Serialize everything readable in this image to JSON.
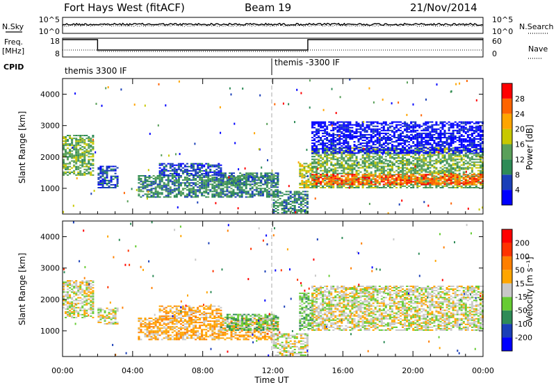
{
  "header": {
    "station": "Fort Hays West (fitACF)",
    "beam": "Beam 19",
    "date": "21/Nov/2014"
  },
  "strip_labels": {
    "nsky": "N.Sky",
    "nsearch": "N.Search",
    "freq_line1": "Freq.",
    "freq_line2": "[MHz]",
    "nave": "Nave",
    "cpid": "CPID",
    "nsky_ticks": [
      "10^5",
      "10^0"
    ],
    "nsearch_ticks": [
      "10^5",
      "10^0"
    ],
    "freq_ticks": [
      "18",
      "8"
    ],
    "nave_ticks": [
      "60",
      "0"
    ]
  },
  "cpid": {
    "segments": [
      {
        "label": "themis 3300 IF",
        "start_hour": 0
      },
      {
        "label": "themis -3300 IF",
        "start_hour": 12
      }
    ]
  },
  "chart_data": [
    {
      "type": "heatmap",
      "name": "Power",
      "ylabel": "Slant Range [km]",
      "xlim": [
        0,
        24
      ],
      "ylim": [
        180,
        4500
      ],
      "yticks": [
        1000,
        2000,
        3000,
        4000
      ],
      "colorbar": {
        "label": "Power [dB]",
        "ticks": [
          "4",
          "8",
          "12",
          "16",
          "20",
          "24",
          "28"
        ],
        "colors": [
          "#0000ff",
          "#1a3fb8",
          "#2e8b57",
          "#5aa05a",
          "#c8c800",
          "#ffa500",
          "#ff6400",
          "#ff0000"
        ]
      },
      "echo_regions": [
        {
          "t0": 0.0,
          "t1": 1.8,
          "r0": 1400,
          "r1": 2700,
          "level": 3
        },
        {
          "t0": 2.0,
          "t1": 3.2,
          "r0": 1000,
          "r1": 1700,
          "level": 1
        },
        {
          "t0": 4.3,
          "t1": 12.3,
          "r0": 700,
          "r1": 1400,
          "level": 2
        },
        {
          "t0": 5.5,
          "t1": 9.0,
          "r0": 1400,
          "r1": 1800,
          "level": 1
        },
        {
          "t0": 9.0,
          "t1": 12.3,
          "r0": 1100,
          "r1": 1500,
          "level": 2
        },
        {
          "t0": 12.0,
          "t1": 14.0,
          "r0": 200,
          "r1": 900,
          "level": 2
        },
        {
          "t0": 13.5,
          "t1": 14.3,
          "r0": 1000,
          "r1": 1800,
          "level": 4
        },
        {
          "t0": 14.2,
          "t1": 24.0,
          "r0": 1000,
          "r1": 2300,
          "level": 3
        },
        {
          "t0": 14.2,
          "t1": 24.0,
          "r0": 1100,
          "r1": 1450,
          "level": 6
        },
        {
          "t0": 14.2,
          "t1": 24.0,
          "r0": 2100,
          "r1": 3100,
          "level": 0
        }
      ]
    },
    {
      "type": "heatmap",
      "name": "Velocity",
      "ylabel": "Slant Range [km]",
      "xlabel": "Time UT",
      "xlim": [
        0,
        24
      ],
      "ylim": [
        180,
        4500
      ],
      "yticks": [
        1000,
        2000,
        3000,
        4000
      ],
      "xticks": [
        "00:00",
        "04:00",
        "08:00",
        "12:00",
        "16:00",
        "20:00",
        "00:00"
      ],
      "colorbar": {
        "label": "Velocity [m s⁻¹]",
        "ticks": [
          "200",
          "100",
          "50",
          "15",
          "-15",
          "-50",
          "-100",
          "-200"
        ],
        "colors": [
          "#0000ff",
          "#1a3fb8",
          "#2e8b57",
          "#66cc33",
          "#c8c8c8",
          "#ffa500",
          "#ff7f00",
          "#ff3300",
          "#ff0000"
        ]
      },
      "echo_regions": [
        {
          "t0": 0.0,
          "t1": 1.8,
          "r0": 1400,
          "r1": 2600,
          "level": 4
        },
        {
          "t0": 2.0,
          "t1": 3.2,
          "r0": 1200,
          "r1": 1700,
          "level": 4
        },
        {
          "t0": 4.3,
          "t1": 12.3,
          "r0": 700,
          "r1": 1400,
          "level": 5
        },
        {
          "t0": 5.5,
          "t1": 9.0,
          "r0": 1400,
          "r1": 1800,
          "level": 5
        },
        {
          "t0": 9.0,
          "t1": 12.3,
          "r0": 1000,
          "r1": 1500,
          "level": 3
        },
        {
          "t0": 12.0,
          "t1": 14.0,
          "r0": 200,
          "r1": 900,
          "level": 4
        },
        {
          "t0": 13.5,
          "t1": 14.3,
          "r0": 1000,
          "r1": 2200,
          "level": 3
        },
        {
          "t0": 14.2,
          "t1": 24.0,
          "r0": 1000,
          "r1": 1900,
          "level": 4
        },
        {
          "t0": 14.2,
          "t1": 24.0,
          "r0": 1900,
          "r1": 2400,
          "level": 4
        }
      ]
    }
  ]
}
